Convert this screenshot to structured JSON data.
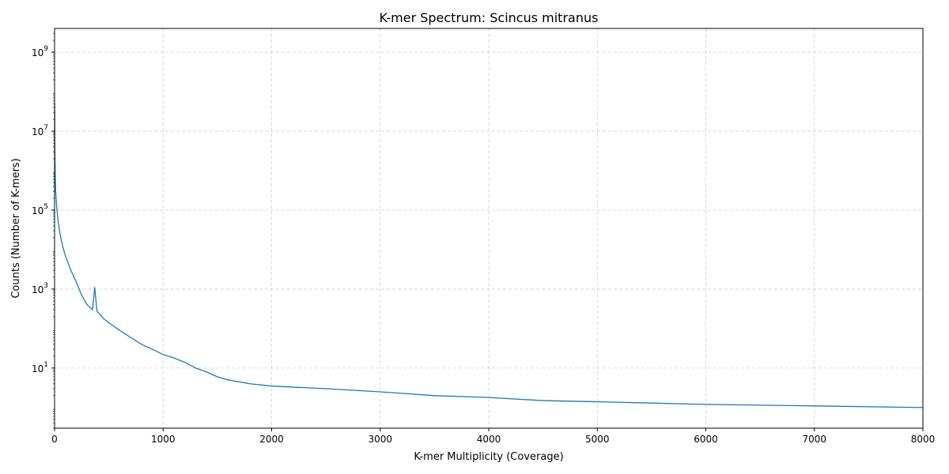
{
  "chart_data": {
    "type": "line",
    "title": "K-mer Spectrum: Scincus mitranus",
    "xlabel": "K-mer Multiplicity (Coverage)",
    "ylabel": "Counts (Number of K-mers)",
    "xlim": [
      0,
      8000
    ],
    "ylim": [
      0.3,
      4000000000
    ],
    "y_scale": "log",
    "grid": true,
    "x_ticks": [
      0,
      1000,
      2000,
      3000,
      4000,
      5000,
      6000,
      7000,
      8000
    ],
    "x_tick_labels": [
      "0",
      "1000",
      "2000",
      "3000",
      "4000",
      "5000",
      "6000",
      "7000",
      "8000"
    ],
    "y_ticks": [
      {
        "value": 10,
        "base": "10",
        "exp": "1"
      },
      {
        "value": 1000,
        "base": "10",
        "exp": "3"
      },
      {
        "value": 100000,
        "base": "10",
        "exp": "5"
      },
      {
        "value": 10000000,
        "base": "10",
        "exp": "7"
      },
      {
        "value": 1000000000,
        "base": "10",
        "exp": "9"
      }
    ],
    "series": [
      {
        "color": "#1f77b4",
        "points": [
          [
            1,
            50000000
          ],
          [
            3,
            3000000
          ],
          [
            6,
            800000
          ],
          [
            10,
            300000
          ],
          [
            20,
            120000
          ],
          [
            30,
            60000
          ],
          [
            50,
            25000
          ],
          [
            75,
            12000
          ],
          [
            100,
            7000
          ],
          [
            150,
            3000
          ],
          [
            200,
            1500
          ],
          [
            250,
            700
          ],
          [
            300,
            400
          ],
          [
            350,
            300
          ],
          [
            370,
            1100
          ],
          [
            390,
            280
          ],
          [
            450,
            180
          ],
          [
            500,
            140
          ],
          [
            600,
            90
          ],
          [
            700,
            60
          ],
          [
            800,
            40
          ],
          [
            900,
            30
          ],
          [
            1000,
            22
          ],
          [
            1100,
            18
          ],
          [
            1200,
            14
          ],
          [
            1300,
            10
          ],
          [
            1400,
            8
          ],
          [
            1500,
            6
          ],
          [
            1600,
            5
          ],
          [
            1800,
            4
          ],
          [
            2000,
            3.5
          ],
          [
            2500,
            3
          ],
          [
            3000,
            2.5
          ],
          [
            3500,
            2
          ],
          [
            4000,
            1.8
          ],
          [
            4500,
            1.5
          ],
          [
            5000,
            1.4
          ],
          [
            5500,
            1.3
          ],
          [
            6000,
            1.2
          ],
          [
            7000,
            1.1
          ],
          [
            8000,
            1
          ]
        ]
      }
    ]
  }
}
